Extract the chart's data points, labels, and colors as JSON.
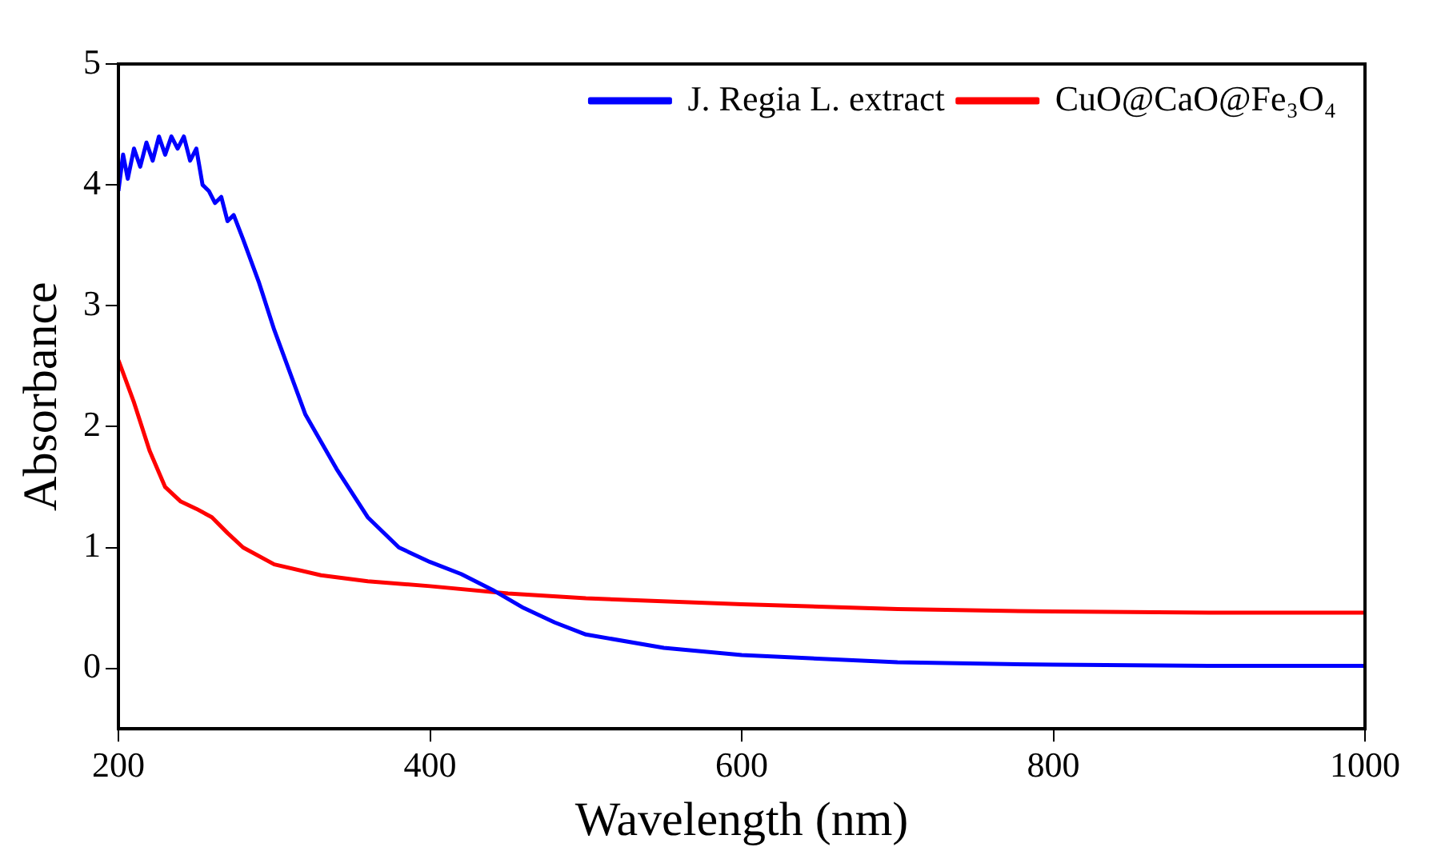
{
  "chart_data": {
    "type": "line",
    "xlabel": "Wavelength (nm)",
    "ylabel": "Absorbance",
    "xlim": [
      200,
      1000
    ],
    "xticks": [
      200,
      400,
      600,
      800,
      1000
    ],
    "ylim": [
      -0.5,
      5
    ],
    "yticks": [
      0,
      1,
      2,
      3,
      4,
      5
    ],
    "grid": false,
    "legend": "top right",
    "marker": "none",
    "line_style": "solid",
    "series": [
      {
        "name": "J. Regia L. extract",
        "color": "#0000ff",
        "x": [
          200,
          203,
          206,
          210,
          214,
          218,
          222,
          226,
          230,
          234,
          238,
          242,
          246,
          250,
          254,
          258,
          262,
          266,
          270,
          274,
          280,
          290,
          300,
          310,
          320,
          340,
          360,
          380,
          400,
          420,
          440,
          460,
          480,
          500,
          550,
          600,
          700,
          800,
          900,
          1000
        ],
        "values": [
          3.95,
          4.25,
          4.05,
          4.3,
          4.15,
          4.35,
          4.2,
          4.4,
          4.25,
          4.4,
          4.3,
          4.4,
          4.2,
          4.3,
          4.0,
          3.95,
          3.85,
          3.9,
          3.7,
          3.75,
          3.55,
          3.2,
          2.8,
          2.45,
          2.1,
          1.65,
          1.25,
          1.0,
          0.88,
          0.78,
          0.65,
          0.5,
          0.38,
          0.28,
          0.17,
          0.11,
          0.05,
          0.03,
          0.02,
          0.02
        ]
      },
      {
        "name": "CuO@CaO@Fe₃O₄",
        "color": "#ff0000",
        "x": [
          200,
          210,
          220,
          230,
          240,
          250,
          260,
          270,
          280,
          300,
          330,
          360,
          400,
          450,
          500,
          600,
          700,
          800,
          900,
          1000
        ],
        "values": [
          2.55,
          2.2,
          1.8,
          1.5,
          1.38,
          1.32,
          1.25,
          1.12,
          1.0,
          0.86,
          0.77,
          0.72,
          0.68,
          0.62,
          0.58,
          0.53,
          0.49,
          0.47,
          0.46,
          0.46
        ]
      }
    ]
  }
}
